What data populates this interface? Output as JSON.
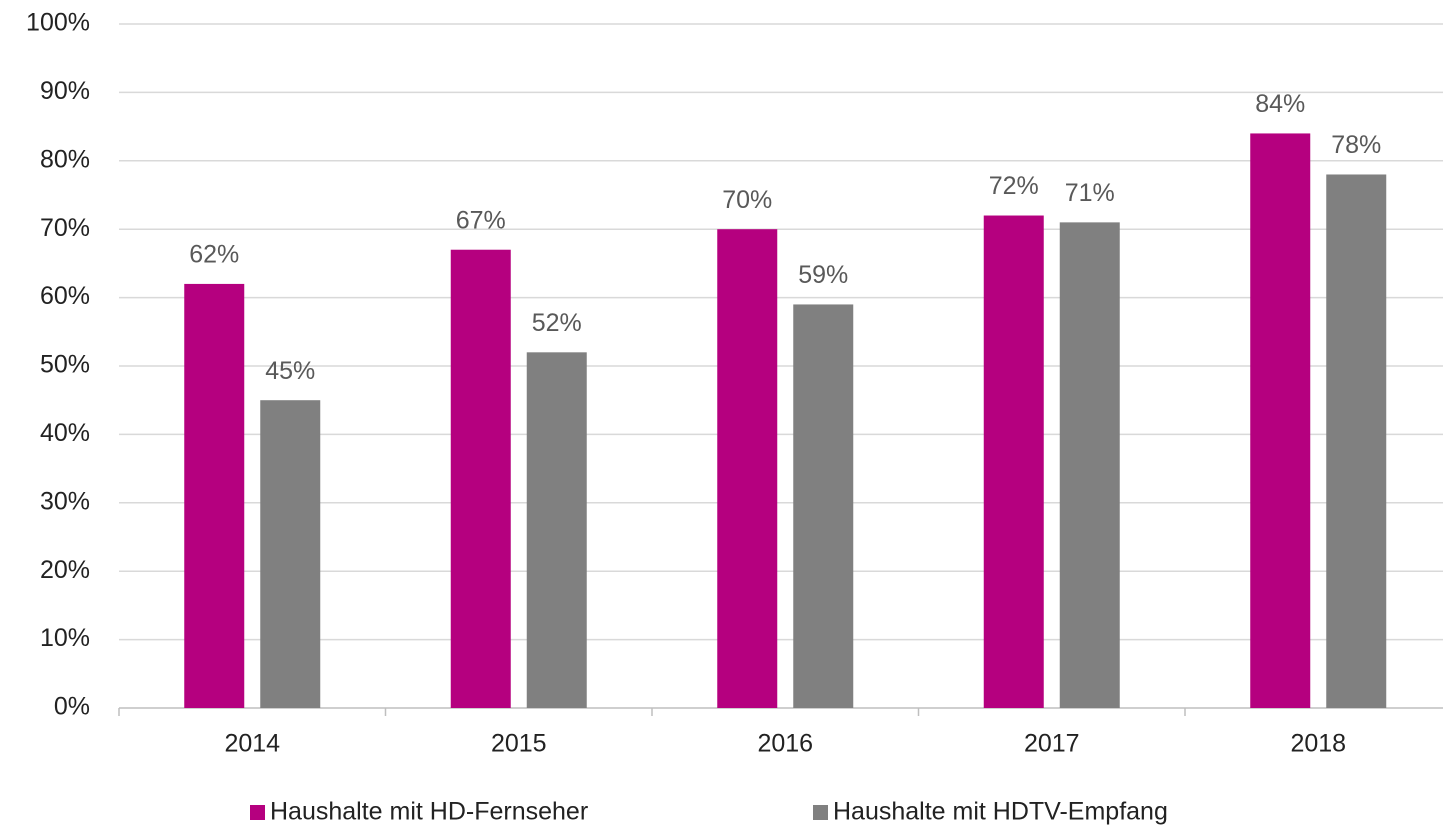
{
  "chart_data": {
    "type": "bar",
    "categories": [
      "2014",
      "2015",
      "2016",
      "2017",
      "2018"
    ],
    "series": [
      {
        "name": "Haushalte mit HD-Fernseher",
        "color": "#b5007f",
        "values": [
          62,
          67,
          70,
          72,
          84
        ],
        "value_labels": [
          "62%",
          "67%",
          "70%",
          "72%",
          "84%"
        ]
      },
      {
        "name": "Haushalte mit HDTV-Empfang",
        "color": "#808080",
        "values": [
          45,
          52,
          59,
          71,
          78
        ],
        "value_labels": [
          "45%",
          "52%",
          "59%",
          "71%",
          "78%"
        ]
      }
    ],
    "ylim": [
      0,
      100
    ],
    "yticks": [
      {
        "value": 0,
        "label": "0%"
      },
      {
        "value": 10,
        "label": "10%"
      },
      {
        "value": 20,
        "label": "20%"
      },
      {
        "value": 30,
        "label": "30%"
      },
      {
        "value": 40,
        "label": "40%"
      },
      {
        "value": 50,
        "label": "50%"
      },
      {
        "value": 60,
        "label": "60%"
      },
      {
        "value": 70,
        "label": "70%"
      },
      {
        "value": 80,
        "label": "80%"
      },
      {
        "value": 90,
        "label": "90%"
      },
      {
        "value": 100,
        "label": "100%"
      }
    ],
    "grid": true,
    "legend": "bottom"
  }
}
